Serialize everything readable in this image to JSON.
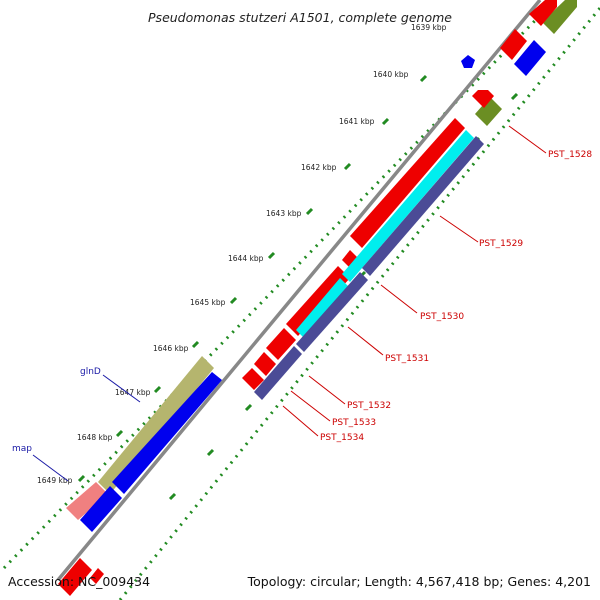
{
  "title": "Pseudomonas stutzeri A1501, complete genome",
  "footer": {
    "accession": "Accession: NC_009434",
    "summary": "Topology: circular; Length: 4,567,418 bp; Genes: 4,201"
  },
  "colors": {
    "backbone": "#888888",
    "tick_dot": "#228b22",
    "gene_red": "#ee0000",
    "gene_blue": "#0000ee",
    "gene_cyan": "#00eeee",
    "gene_olive": "#6b8e23",
    "gene_khaki": "#b5b56e",
    "gene_navy": "#4b4b96",
    "gene_pink": "#f08080",
    "label_red": "#cc0000",
    "label_blue": "#1a1aa6"
  },
  "tick_labels": [
    "1639 kbp",
    "1640 kbp",
    "1641 kbp",
    "1642 kbp",
    "1643 kbp",
    "1644 kbp",
    "1645 kbp",
    "1646 kbp",
    "1647 kbp",
    "1648 kbp",
    "1649 kbp"
  ],
  "gene_labels": [
    "PST_1528",
    "PST_1529",
    "PST_1530",
    "PST_1531",
    "PST_1532",
    "PST_1533",
    "PST_1534"
  ],
  "named_labels": [
    "glnD",
    "map"
  ]
}
